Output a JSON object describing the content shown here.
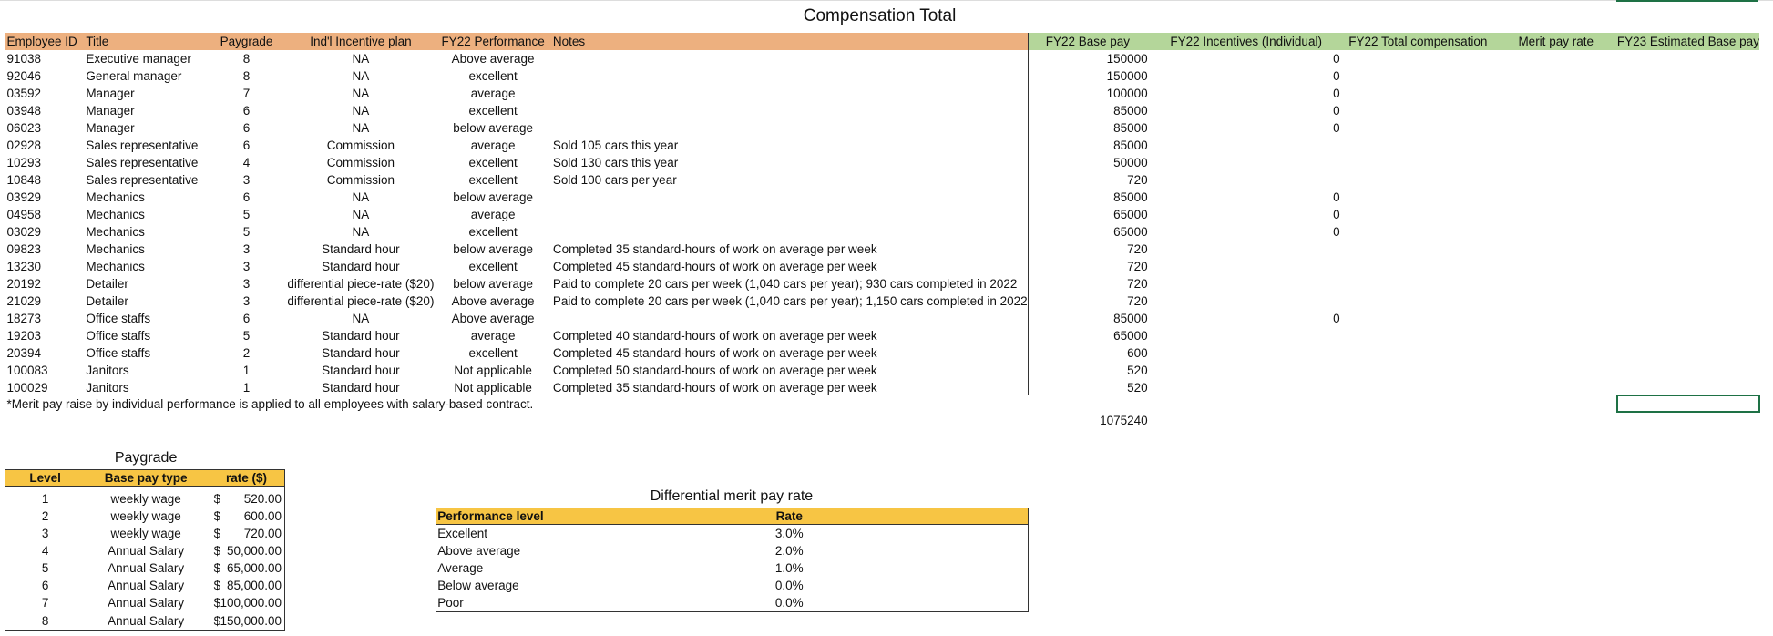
{
  "sheet": {
    "title": "Compensation Total",
    "headers": [
      "Employee ID",
      "Title",
      "Paygrade",
      "Ind'l Incentive plan",
      "FY22 Performance",
      "Notes",
      "FY22 Base pay",
      "FY22 Incentives (Individual)",
      "FY22 Total compensation",
      "Merit pay rate",
      "FY23 Estimated Base pay"
    ],
    "rows": [
      {
        "id": "91038",
        "title": "Executive manager",
        "paygrade": 8,
        "plan": "NA",
        "performance": "Above average",
        "base_pay": 150000,
        "incentive": 0
      },
      {
        "id": "92046",
        "title": "General manager",
        "paygrade": 8,
        "plan": "NA",
        "performance": "excellent",
        "base_pay": 150000,
        "incentive": 0
      },
      {
        "id": "03592",
        "title": "Manager",
        "paygrade": 7,
        "plan": "NA",
        "performance": "average",
        "base_pay": 100000,
        "incentive": 0
      },
      {
        "id": "03948",
        "title": "Manager",
        "paygrade": 6,
        "plan": "NA",
        "performance": "excellent",
        "base_pay": 85000,
        "incentive": 0
      },
      {
        "id": "06023",
        "title": "Manager",
        "paygrade": 6,
        "plan": "NA",
        "performance": "below average",
        "base_pay": 85000,
        "incentive": 0
      },
      {
        "id": "02928",
        "title": "Sales representative",
        "paygrade": 6,
        "plan": "Commission",
        "performance": "average",
        "notes": "Sold 105 cars this year",
        "base_pay": 85000
      },
      {
        "id": "10293",
        "title": "Sales representative",
        "paygrade": 4,
        "plan": "Commission",
        "performance": "excellent",
        "notes": "Sold 130 cars this year",
        "base_pay": 50000
      },
      {
        "id": "10848",
        "title": "Sales representative",
        "paygrade": 3,
        "plan": "Commission",
        "performance": "excellent",
        "notes": "Sold 100 cars per year",
        "base_pay": 720
      },
      {
        "id": "03929",
        "title": "Mechanics",
        "paygrade": 6,
        "plan": "NA",
        "performance": "below average",
        "base_pay": 85000,
        "incentive": 0
      },
      {
        "id": "04958",
        "title": "Mechanics",
        "paygrade": 5,
        "plan": "NA",
        "performance": "average",
        "base_pay": 65000,
        "incentive": 0
      },
      {
        "id": "03029",
        "title": "Mechanics",
        "paygrade": 5,
        "plan": "NA",
        "performance": "excellent",
        "base_pay": 65000,
        "incentive": 0
      },
      {
        "id": "09823",
        "title": "Mechanics",
        "paygrade": 3,
        "plan": "Standard hour",
        "performance": "below average",
        "notes": "Completed 35 standard-hours of work on average per week",
        "base_pay": 720
      },
      {
        "id": "13230",
        "title": "Mechanics",
        "paygrade": 3,
        "plan": "Standard hour",
        "performance": "excellent",
        "notes": "Completed 45 standard-hours of work on average per week",
        "base_pay": 720
      },
      {
        "id": "20192",
        "title": "Detailer",
        "paygrade": 3,
        "plan": "differential piece-rate ($20)",
        "performance": "below average",
        "notes": "Paid to complete 20 cars per week (1,040 cars per year); 930 cars completed in 2022",
        "base_pay": 720
      },
      {
        "id": "21029",
        "title": "Detailer",
        "paygrade": 3,
        "plan": "differential piece-rate ($20)",
        "performance": "Above average",
        "notes": "Paid to complete 20 cars per week (1,040 cars per year); 1,150 cars completed in 2022",
        "base_pay": 720
      },
      {
        "id": "18273",
        "title": "Office staffs",
        "paygrade": 6,
        "plan": "NA",
        "performance": "Above average",
        "base_pay": 85000,
        "incentive": 0
      },
      {
        "id": "19203",
        "title": "Office staffs",
        "paygrade": 5,
        "plan": "Standard hour",
        "performance": "average",
        "notes": "Completed 40 standard-hours of work on average per week",
        "base_pay": 65000
      },
      {
        "id": "20394",
        "title": "Office staffs",
        "paygrade": 2,
        "plan": "Standard hour",
        "performance": "excellent",
        "notes": "Completed 45 standard-hours of work on average per week",
        "base_pay": 600
      },
      {
        "id": "100083",
        "title": "Janitors",
        "paygrade": 1,
        "plan": "Standard hour",
        "performance": "Not applicable",
        "notes": "Completed 50 standard-hours of work on average per week",
        "base_pay": 520
      },
      {
        "id": "100029",
        "title": "Janitors",
        "paygrade": 1,
        "plan": "Standard hour",
        "performance": "Not applicable",
        "notes": "Completed 35 standard-hours of work on average per week",
        "base_pay": 520
      }
    ],
    "footnote": "*Merit pay raise by individual performance is applied to all employees with salary-based contract.",
    "total": 1075240,
    "paygrade": {
      "title": "Paygrade",
      "headers": [
        "Level",
        "Base pay type",
        "rate ($)"
      ],
      "rows": [
        {
          "level": 1,
          "type": "weekly wage",
          "symbol": "$",
          "amount": "520.00"
        },
        {
          "level": 2,
          "type": "weekly wage",
          "symbol": "$",
          "amount": "600.00"
        },
        {
          "level": 3,
          "type": "weekly wage",
          "symbol": "$",
          "amount": "720.00"
        },
        {
          "level": 4,
          "type": "Annual Salary",
          "symbol": "$",
          "amount": "50,000.00"
        },
        {
          "level": 5,
          "type": "Annual Salary",
          "symbol": "$",
          "amount": "65,000.00"
        },
        {
          "level": 6,
          "type": "Annual Salary",
          "symbol": "$",
          "amount": "85,000.00"
        },
        {
          "level": 7,
          "type": "Annual Salary",
          "symbol": "$",
          "amount": "100,000.00"
        },
        {
          "level": 8,
          "type": "Annual Salary",
          "symbol": "$",
          "amount": "150,000.00"
        }
      ]
    },
    "merit": {
      "title": "Differential merit pay rate",
      "headers": [
        "Performance level",
        "Rate"
      ],
      "rows": [
        {
          "level": "Excellent",
          "rate": "3.0%"
        },
        {
          "level": "Above average",
          "rate": "2.0%"
        },
        {
          "level": "Average",
          "rate": "1.0%"
        },
        {
          "level": "Below average",
          "rate": "0.0%"
        },
        {
          "level": "Poor",
          "rate": "0.0%"
        }
      ]
    }
  }
}
